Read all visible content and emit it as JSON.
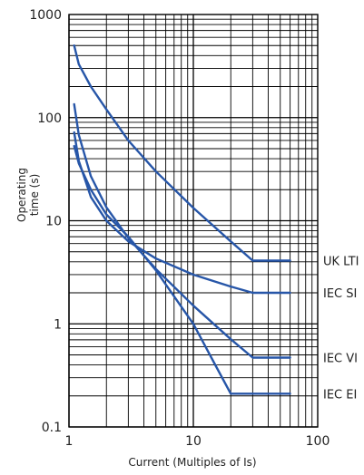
{
  "chart_data": {
    "type": "line",
    "xscale": "log",
    "yscale": "log",
    "xlim": [
      1,
      100
    ],
    "ylim": [
      0.1,
      1000
    ],
    "grid": true,
    "xlabel": "Current (Multiples of Is)",
    "ylabel_lines": [
      "Operating",
      "time (s)"
    ],
    "x_ticks": [
      {
        "value": 1,
        "label": "1"
      },
      {
        "value": 10,
        "label": "10"
      },
      {
        "value": 100,
        "label": "100"
      }
    ],
    "y_ticks": [
      {
        "value": 0.1,
        "label": "0.1"
      },
      {
        "value": 1,
        "label": "1"
      },
      {
        "value": 10,
        "label": "10"
      },
      {
        "value": 100,
        "label": "100"
      },
      {
        "value": 1000,
        "label": "1000"
      }
    ],
    "series": [
      {
        "name": "UK LTI",
        "color": "#2756a8",
        "points": [
          [
            1.1,
            500
          ],
          [
            1.2,
            330
          ],
          [
            1.5,
            200
          ],
          [
            2,
            120
          ],
          [
            3,
            60
          ],
          [
            5,
            30
          ],
          [
            10,
            13.3
          ],
          [
            20,
            6.3
          ],
          [
            30,
            4.1
          ],
          [
            60,
            4.1
          ]
        ]
      },
      {
        "name": "IEC SI",
        "color": "#2756a8",
        "points": [
          [
            1.1,
            72
          ],
          [
            1.2,
            38
          ],
          [
            1.5,
            17
          ],
          [
            2,
            10
          ],
          [
            3,
            6.3
          ],
          [
            5,
            4.3
          ],
          [
            10,
            3.0
          ],
          [
            20,
            2.3
          ],
          [
            30,
            2.0
          ],
          [
            60,
            2.0
          ]
        ]
      },
      {
        "name": "IEC VI",
        "color": "#2756a8",
        "points": [
          [
            1.1,
            135
          ],
          [
            1.2,
            68
          ],
          [
            1.5,
            27
          ],
          [
            2,
            13.5
          ],
          [
            3,
            6.8
          ],
          [
            5,
            3.4
          ],
          [
            10,
            1.5
          ],
          [
            20,
            0.71
          ],
          [
            30,
            0.47
          ],
          [
            60,
            0.47
          ]
        ]
      },
      {
        "name": "IEC EI",
        "color": "#2756a8",
        "points": [
          [
            1.1,
            53
          ],
          [
            1.2,
            36
          ],
          [
            1.5,
            20
          ],
          [
            2,
            11.5
          ],
          [
            3,
            7.0
          ],
          [
            5,
            3.3
          ],
          [
            10,
            1.0
          ],
          [
            15,
            0.4
          ],
          [
            20,
            0.21
          ],
          [
            60,
            0.21
          ]
        ]
      }
    ]
  }
}
